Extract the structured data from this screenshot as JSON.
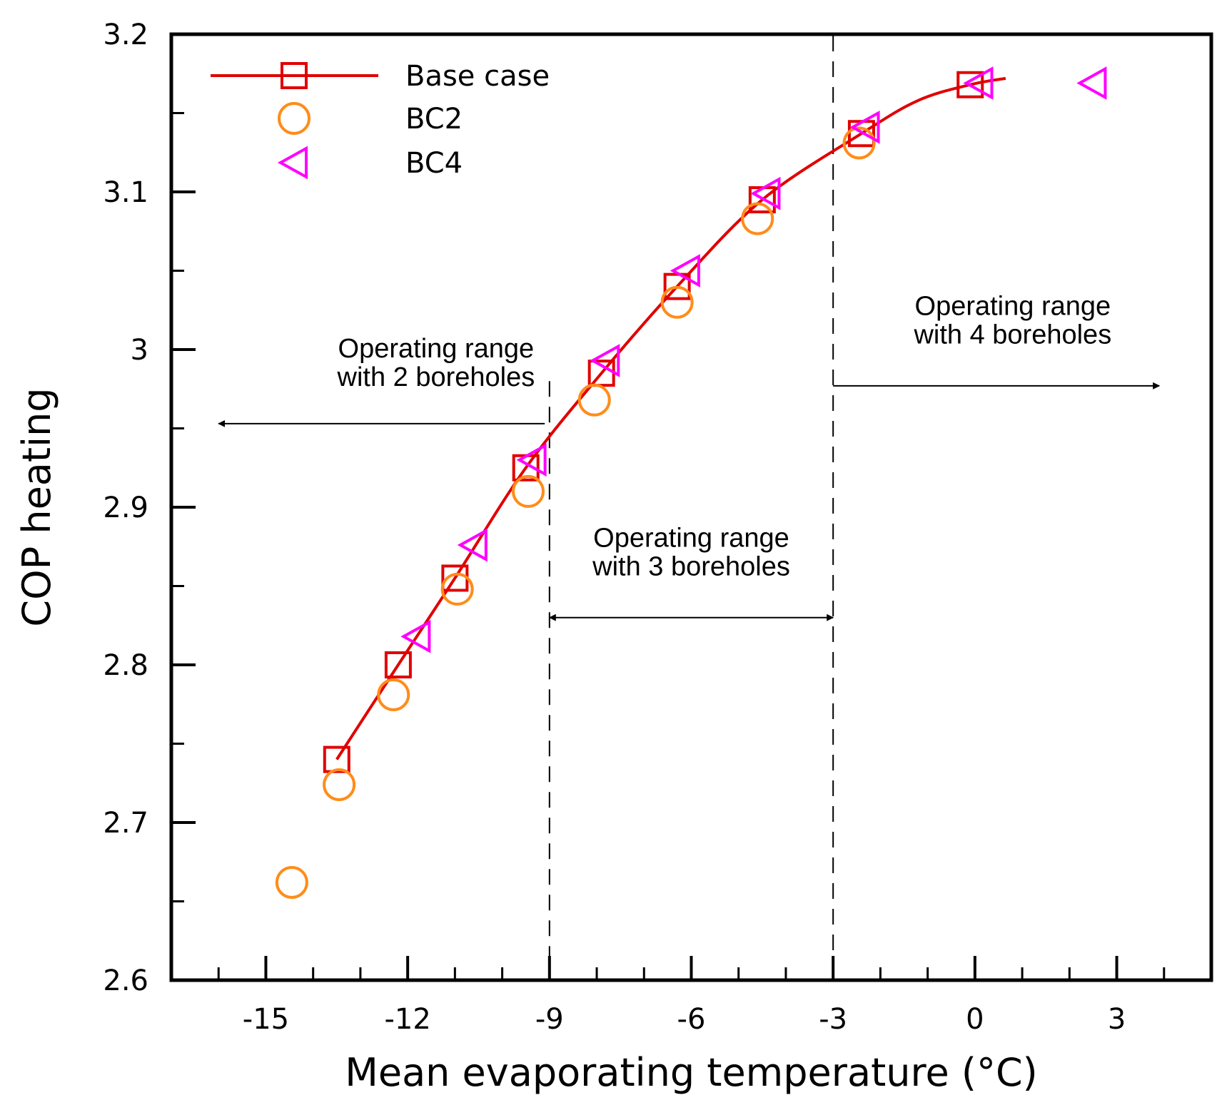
{
  "chart_data": {
    "type": "scatter",
    "xlabel": "Mean evaporating temperature (°C)",
    "ylabel": "COP heating",
    "xlim": [
      -17,
      5
    ],
    "ylim": [
      2.6,
      3.2
    ],
    "x_ticks": [
      -15,
      -12,
      -9,
      -6,
      -3,
      0,
      3
    ],
    "x_tick_labels": [
      "-15",
      "-12",
      "-9",
      "-6",
      "-3",
      "0",
      "3"
    ],
    "y_ticks": [
      2.6,
      2.7,
      2.8,
      2.9,
      3.0,
      3.1,
      3.2
    ],
    "y_tick_labels": [
      "2.6",
      "2.7",
      "2.8",
      "2.9",
      "3",
      "3.1",
      "3.2"
    ],
    "x_minor_step": 1,
    "y_minor_step": 0.05,
    "grid": false,
    "legend_position": "top-left",
    "series": [
      {
        "name": "Base case",
        "marker": "square",
        "line": true,
        "color": "#e00000",
        "points": [
          [
            -13.5,
            2.74
          ],
          [
            -12.2,
            2.8
          ],
          [
            -11.0,
            2.855
          ],
          [
            -9.5,
            2.925
          ],
          [
            -7.9,
            2.985
          ],
          [
            -6.3,
            3.04
          ],
          [
            -4.5,
            3.095
          ],
          [
            -2.4,
            3.137
          ],
          [
            -0.1,
            3.168
          ]
        ],
        "curve": [
          [
            -13.5,
            2.74
          ],
          [
            -12.2,
            2.8
          ],
          [
            -11.0,
            2.855
          ],
          [
            -9.5,
            2.925
          ],
          [
            -7.9,
            2.985
          ],
          [
            -6.3,
            3.04
          ],
          [
            -4.5,
            3.095
          ],
          [
            -2.4,
            3.137
          ],
          [
            -1.2,
            3.158
          ],
          [
            -0.1,
            3.168
          ],
          [
            0.65,
            3.172
          ]
        ]
      },
      {
        "name": "BC2",
        "marker": "circle",
        "line": false,
        "color": "#ff8c1a",
        "points": [
          [
            -14.45,
            2.662
          ],
          [
            -13.45,
            2.724
          ],
          [
            -12.3,
            2.781
          ],
          [
            -10.95,
            2.848
          ],
          [
            -9.45,
            2.91
          ],
          [
            -8.05,
            2.968
          ],
          [
            -6.3,
            3.03
          ],
          [
            -4.6,
            3.083
          ],
          [
            -2.45,
            3.131
          ]
        ]
      },
      {
        "name": "BC4",
        "marker": "triangle-left",
        "line": false,
        "color": "#ff00ff",
        "points": [
          [
            -11.8,
            2.818
          ],
          [
            -10.6,
            2.876
          ],
          [
            -9.35,
            2.93
          ],
          [
            -7.8,
            2.993
          ],
          [
            -6.1,
            3.05
          ],
          [
            -4.4,
            3.099
          ],
          [
            -2.3,
            3.141
          ],
          [
            0.1,
            3.169
          ],
          [
            2.5,
            3.169
          ]
        ]
      }
    ],
    "vertical_lines": [
      {
        "x": -9,
        "style": "dashed"
      },
      {
        "x": -3,
        "style": "dashed"
      }
    ],
    "annotations": [
      {
        "lines": [
          "Operating range",
          "with 2 boreholes"
        ],
        "arrow": "left",
        "x_from": -9.1,
        "x_to": -16,
        "y": 2.953,
        "text_x": -11.4,
        "text_y": 2.995
      },
      {
        "lines": [
          "Operating range",
          "with 3 boreholes"
        ],
        "arrow": "both",
        "x_from": -9,
        "x_to": -3,
        "y": 2.83,
        "text_x": -6,
        "text_y": 2.875
      },
      {
        "lines": [
          "Operating range",
          "with 4 boreholes"
        ],
        "arrow": "right",
        "x_from": -3,
        "x_to": 3.9,
        "y": 2.977,
        "text_x": 0.8,
        "text_y": 3.022
      }
    ]
  }
}
